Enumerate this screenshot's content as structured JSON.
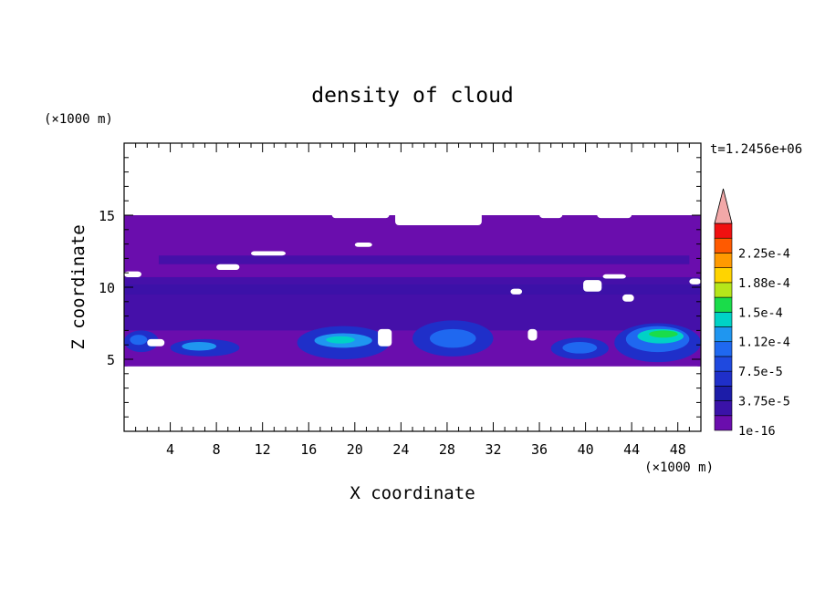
{
  "chart_data": {
    "type": "heatmap",
    "title": "density of cloud",
    "xlabel": "X coordinate",
    "ylabel": "Z coordinate",
    "x_unit": "(×1000 m)",
    "y_unit": "(×1000 m)",
    "time_label": "t=1.2456e+06",
    "xlim": [
      0,
      50
    ],
    "ylim": [
      0,
      20
    ],
    "x_ticks": [
      4,
      8,
      12,
      16,
      20,
      24,
      28,
      32,
      36,
      40,
      44,
      48
    ],
    "y_ticks": [
      5,
      10,
      15
    ],
    "colorbar": {
      "labels": [
        "1e-16",
        "3.75e-5",
        "7.5e-5",
        "1.12e-4",
        "1.5e-4",
        "1.88e-4",
        "2.25e-4"
      ],
      "levels": [
        1e-16,
        1.875e-05,
        3.75e-05,
        5.625e-05,
        7.5e-05,
        9.375e-05,
        0.0001125,
        0.00013125,
        0.00015,
        0.00016875,
        0.0001875,
        0.00020625,
        0.000225,
        0.00024375
      ],
      "colors": [
        "#6a0dad",
        "#3a12a8",
        "#1c1ca8",
        "#1f2fc9",
        "#1f49df",
        "#1f68f0",
        "#1f96f0",
        "#00d2c6",
        "#1adc4a",
        "#b6e61a",
        "#ffd400",
        "#ff9a00",
        "#ff5a00",
        "#f01010"
      ],
      "over_color": "#f2a8a8"
    },
    "cloud_layer": {
      "base_z": 4.5,
      "top_z": 15,
      "fill_level_index": 0
    },
    "cells": [
      {
        "x": 0,
        "z": 5.5,
        "w": 3,
        "h": 1.5,
        "level": 3
      },
      {
        "x": 0.5,
        "z": 6.0,
        "w": 1.5,
        "h": 0.7,
        "level": 5
      },
      {
        "x": 4,
        "z": 5.2,
        "w": 6,
        "h": 1.2,
        "level": 3
      },
      {
        "x": 5,
        "z": 5.6,
        "w": 3,
        "h": 0.6,
        "level": 6
      },
      {
        "x": 15,
        "z": 5.0,
        "w": 8,
        "h": 2.3,
        "level": 3
      },
      {
        "x": 16.5,
        "z": 5.8,
        "w": 5,
        "h": 1.0,
        "level": 6
      },
      {
        "x": 17.5,
        "z": 6.1,
        "w": 2.5,
        "h": 0.5,
        "level": 7
      },
      {
        "x": 25,
        "z": 5.2,
        "w": 7,
        "h": 2.5,
        "level": 3
      },
      {
        "x": 26.5,
        "z": 5.8,
        "w": 4,
        "h": 1.3,
        "level": 5
      },
      {
        "x": 37,
        "z": 5.0,
        "w": 5,
        "h": 1.5,
        "level": 3
      },
      {
        "x": 38,
        "z": 5.4,
        "w": 3,
        "h": 0.8,
        "level": 5
      },
      {
        "x": 42.5,
        "z": 4.8,
        "w": 7.5,
        "h": 2.7,
        "level": 3
      },
      {
        "x": 43.5,
        "z": 5.5,
        "w": 5.5,
        "h": 1.8,
        "level": 5
      },
      {
        "x": 44.5,
        "z": 6.1,
        "w": 4,
        "h": 1.0,
        "level": 7
      },
      {
        "x": 45.5,
        "z": 6.5,
        "w": 2.5,
        "h": 0.5,
        "level": 8
      }
    ]
  }
}
